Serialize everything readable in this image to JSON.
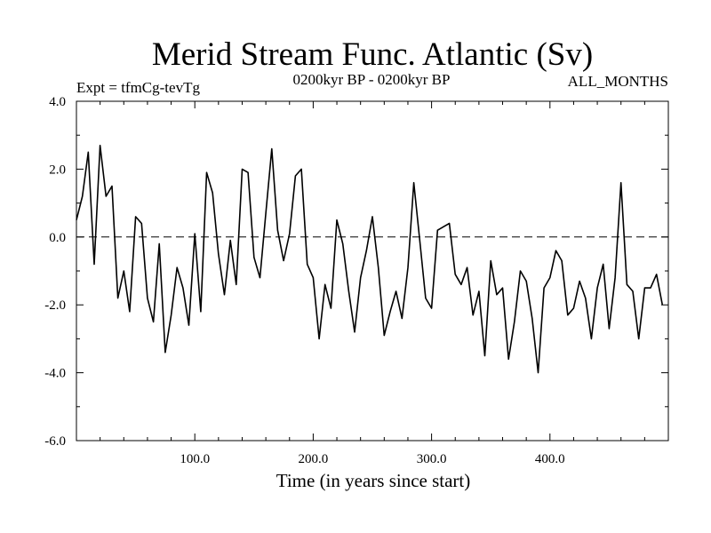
{
  "chart_data": {
    "type": "line",
    "title": "Merid Stream Func. Atlantic (Sv)",
    "subtitle_left": "Expt = tfmCg-tevTg",
    "subtitle_center": "0200kyr BP - 0200kyr BP",
    "subtitle_right": "ALL_MONTHS",
    "xlabel": "Time (in years since start)",
    "ylabel": "",
    "xlim": [
      0,
      500
    ],
    "ylim": [
      -6,
      4
    ],
    "x_ticks": [
      100,
      200,
      300,
      400
    ],
    "x_tick_labels": [
      "100.0",
      "200.0",
      "300.0",
      "400.0"
    ],
    "y_ticks": [
      4,
      2,
      0,
      -2,
      -4,
      -6
    ],
    "y_tick_labels": [
      "4.0",
      "2.0",
      "0.0",
      "-2.0",
      "-4.0",
      "-6.0"
    ],
    "reference_line": {
      "y": 0,
      "style": "dashed"
    },
    "x_step": 5,
    "series": [
      {
        "name": "Merid Stream Func. Atlantic",
        "x_start": 0,
        "values": [
          0.5,
          1.2,
          2.5,
          -0.8,
          2.7,
          1.2,
          1.5,
          -1.8,
          -1.0,
          -2.2,
          0.6,
          0.4,
          -1.8,
          -2.5,
          -0.2,
          -3.4,
          -2.3,
          -0.9,
          -1.5,
          -2.6,
          0.1,
          -2.2,
          1.9,
          1.3,
          -0.5,
          -1.7,
          -0.1,
          -1.4,
          2.0,
          1.9,
          -0.6,
          -1.2,
          0.7,
          2.6,
          0.2,
          -0.7,
          0.1,
          1.8,
          2.0,
          -0.8,
          -1.2,
          -3.0,
          -1.4,
          -2.1,
          0.5,
          -0.2,
          -1.6,
          -2.8,
          -1.2,
          -0.4,
          0.6,
          -0.9,
          -2.9,
          -2.2,
          -1.6,
          -2.4,
          -0.9,
          1.6,
          -0.1,
          -1.8,
          -2.1,
          0.2,
          0.3,
          0.4,
          -1.1,
          -1.4,
          -0.9,
          -2.3,
          -1.6,
          -3.5,
          -0.7,
          -1.7,
          -1.5,
          -3.6,
          -2.5,
          -1.0,
          -1.3,
          -2.4,
          -4.0,
          -1.5,
          -1.2,
          -0.4,
          -0.7,
          -2.3,
          -2.1,
          -1.3,
          -1.8,
          -3.0,
          -1.5,
          -0.8,
          -2.7,
          -1.2,
          1.6,
          -1.4,
          -1.6,
          -3.0,
          -1.5,
          -1.5,
          -1.1,
          -2.0
        ]
      }
    ]
  }
}
